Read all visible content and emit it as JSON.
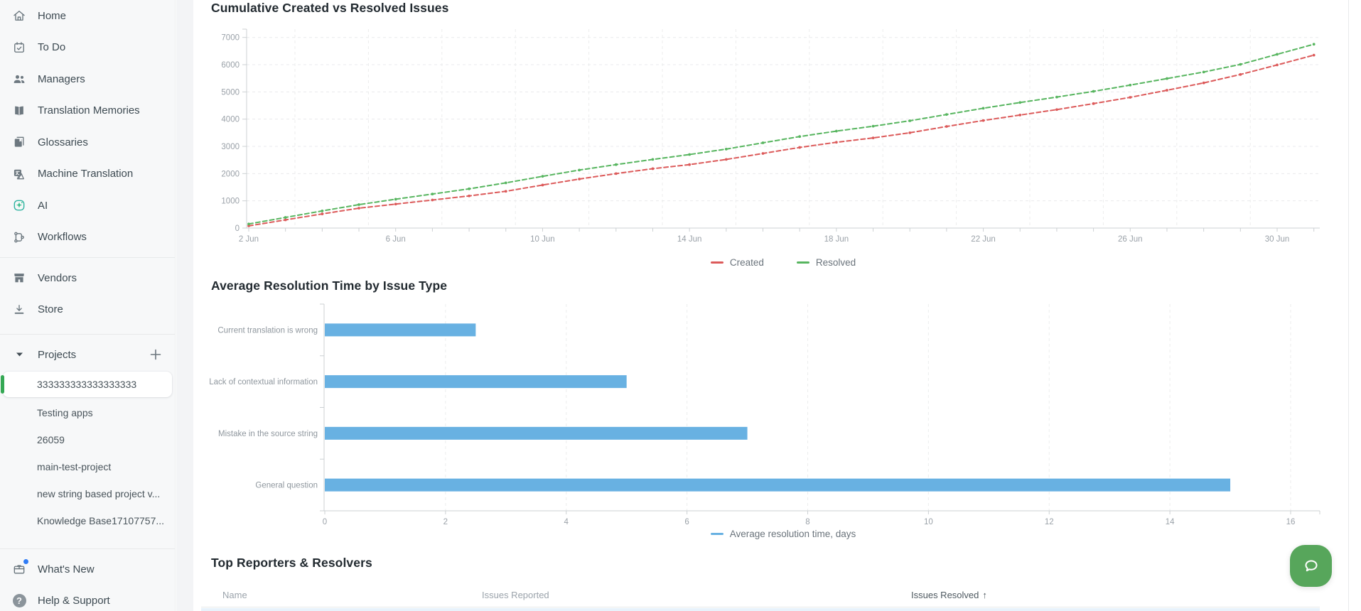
{
  "colors": {
    "created_line": "#dc5a5a",
    "resolved_line": "#57b55f",
    "bar_blue": "#68b1e2",
    "selected_accent_green": "#35a854",
    "chat_green": "#57a65b",
    "whats_new_badge": "#2f7cf6"
  },
  "sidebar": {
    "nav_primary": [
      {
        "label": "Home",
        "icon": "home-icon"
      },
      {
        "label": "To Do",
        "icon": "todo-calendar-icon"
      },
      {
        "label": "Managers",
        "icon": "managers-icon"
      },
      {
        "label": "Translation Memories",
        "icon": "translation-memories-icon"
      },
      {
        "label": "Glossaries",
        "icon": "glossaries-icon"
      },
      {
        "label": "Machine Translation",
        "icon": "machine-translation-icon"
      },
      {
        "label": "AI",
        "icon": "ai-sparkle-icon"
      },
      {
        "label": "Workflows",
        "icon": "workflows-icon"
      }
    ],
    "nav_secondary": [
      {
        "label": "Vendors",
        "icon": "vendors-icon"
      },
      {
        "label": "Store",
        "icon": "store-download-icon"
      }
    ],
    "projects": {
      "label": "Projects",
      "collapse_icon": "chevron-down-icon",
      "add_icon": "plus-icon",
      "items": [
        {
          "label": "333333333333333333",
          "selected": true
        },
        {
          "label": "Testing apps",
          "selected": false
        },
        {
          "label": "26059",
          "selected": false
        },
        {
          "label": "main-test-project",
          "selected": false
        },
        {
          "label": "new string based project v...",
          "selected": false
        },
        {
          "label": "Knowledge Base17107757...",
          "selected": false
        }
      ]
    },
    "nav_footer": [
      {
        "label": "What's New",
        "icon": "whats-new-icon",
        "badge": true
      },
      {
        "label": "Help & Support",
        "icon": "help-icon",
        "badge": false
      }
    ]
  },
  "chart_data": [
    {
      "type": "line",
      "title": "Cumulative Created vs Resolved Issues",
      "x": [
        "2 Jun",
        "3 Jun",
        "4 Jun",
        "5 Jun",
        "6 Jun",
        "7 Jun",
        "8 Jun",
        "9 Jun",
        "10 Jun",
        "11 Jun",
        "12 Jun",
        "13 Jun",
        "14 Jun",
        "15 Jun",
        "16 Jun",
        "17 Jun",
        "18 Jun",
        "19 Jun",
        "20 Jun",
        "21 Jun",
        "22 Jun",
        "23 Jun",
        "24 Jun",
        "25 Jun",
        "26 Jun",
        "27 Jun",
        "28 Jun",
        "29 Jun",
        "30 Jun",
        "1 Jul"
      ],
      "x_tick_labels": [
        "2 Jun",
        "6 Jun",
        "10 Jun",
        "14 Jun",
        "18 Jun",
        "22 Jun",
        "26 Jun",
        "30 Jun"
      ],
      "x_tick_every": 4,
      "ylim": [
        0,
        7000
      ],
      "ytick_step": 1000,
      "grid": "dashed",
      "legend_position": "bottom",
      "series": [
        {
          "name": "Created",
          "values": [
            80,
            300,
            520,
            730,
            880,
            1030,
            1180,
            1350,
            1580,
            1800,
            2000,
            2180,
            2330,
            2520,
            2740,
            2960,
            3150,
            3310,
            3500,
            3730,
            3950,
            4150,
            4350,
            4570,
            4800,
            5060,
            5330,
            5640,
            5990,
            6350
          ]
        },
        {
          "name": "Resolved",
          "values": [
            150,
            390,
            630,
            860,
            1060,
            1250,
            1440,
            1660,
            1900,
            2130,
            2330,
            2520,
            2700,
            2900,
            3130,
            3360,
            3560,
            3740,
            3940,
            4170,
            4400,
            4610,
            4810,
            5020,
            5250,
            5490,
            5730,
            6010,
            6380,
            6750
          ]
        }
      ]
    },
    {
      "type": "bar",
      "orientation": "horizontal",
      "title": "Average Resolution Time by Issue Type",
      "categories": [
        "Current translation is wrong",
        "Lack of contextual information",
        "Mistake in the source string",
        "General question"
      ],
      "values": [
        2.5,
        5,
        7,
        15
      ],
      "xlim": [
        0,
        16
      ],
      "xtick_step": 2,
      "grid": "dashed",
      "legend": "Average resolution time, days",
      "legend_position": "bottom"
    }
  ],
  "table": {
    "title": "Top Reporters & Resolvers",
    "columns": [
      {
        "label": "Name",
        "sorted": false
      },
      {
        "label": "Issues Reported",
        "sorted": false
      },
      {
        "label": "Issues Resolved",
        "sorted": true,
        "sort_arrow": "↑"
      }
    ]
  },
  "chat": {
    "icon": "chat-bubble-icon"
  }
}
